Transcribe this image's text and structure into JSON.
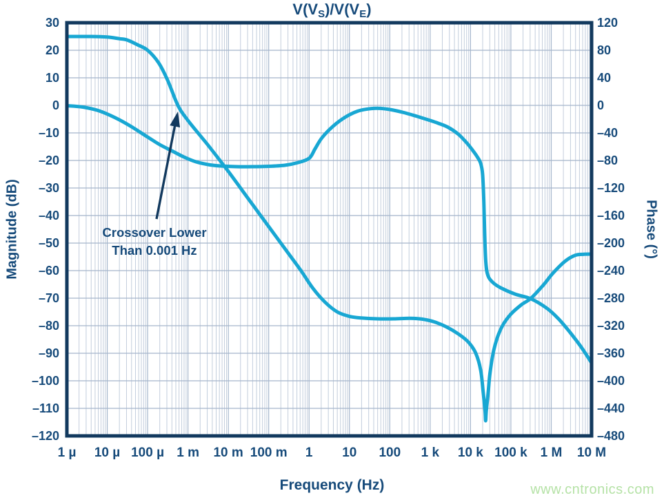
{
  "title_segments": [
    {
      "text": "V(V"
    },
    {
      "text": "S",
      "sub": true
    },
    {
      "text": ")/V(V"
    },
    {
      "text": "E",
      "sub": true
    },
    {
      "text": ")"
    }
  ],
  "watermark": "www.cntronics.com",
  "annotation": {
    "line1": "Crossover Lower",
    "line2": "Than 0.001 Hz"
  },
  "colors": {
    "curve": "#18a7d3",
    "frame": "#12395e",
    "text": "#164a7a",
    "grid_minor": "#c2cddc",
    "grid_major": "#a4b5cb",
    "arrow": "#12395e",
    "watermark": "#b5e2a6"
  },
  "axes": {
    "x": {
      "label": "Frequency (Hz)",
      "scale": "log",
      "tick_labels": [
        "1 µ",
        "10 µ",
        "100 µ",
        "1 m",
        "10 m",
        "100 m",
        "1",
        "10",
        "100",
        "1 k",
        "10 k",
        "100 k",
        "1 M",
        "10 M"
      ],
      "tick_log10_values": [
        -6,
        -5,
        -4,
        -3,
        -2,
        -1,
        0,
        1,
        2,
        3,
        4,
        5,
        6,
        7
      ]
    },
    "left": {
      "label": "Magnitude (dB)",
      "range": [
        30,
        -120
      ],
      "tick_labels": [
        "30",
        "20",
        "10",
        "0",
        "–10",
        "–20",
        "–30",
        "–40",
        "–50",
        "–60",
        "–70",
        "–80",
        "–90",
        "–100",
        "–110",
        "–120"
      ]
    },
    "right": {
      "label": "Phase (°)",
      "range": [
        120,
        -480
      ],
      "tick_labels": [
        "120",
        "80",
        "40",
        "0",
        "–40",
        "–80",
        "–120",
        "–160",
        "–200",
        "–240",
        "–280",
        "–320",
        "–360",
        "–400",
        "–440",
        "–480"
      ]
    }
  },
  "chart_data": {
    "type": "line",
    "title": "V(V_S)/V(V_E)",
    "xlabel": "Frequency (Hz)",
    "x_scale": "log",
    "x_range_log10": [
      -6,
      7
    ],
    "left_ylim": [
      30,
      -120
    ],
    "right_ylim": [
      120,
      -480
    ],
    "grid": true,
    "legend": "none",
    "annotation_text": "Crossover Lower Than 0.001 Hz",
    "annotation_points_at_log10_hz": -3.25,
    "series": [
      {
        "name": "magnitude",
        "axis": "left",
        "unit": "dB",
        "points": [
          [
            -6.0,
            25
          ],
          [
            -5.4,
            25
          ],
          [
            -5.0,
            24.8
          ],
          [
            -4.7,
            24.2
          ],
          [
            -4.5,
            23.7
          ],
          [
            -4.25,
            22
          ],
          [
            -4.0,
            20
          ],
          [
            -3.73,
            15.5
          ],
          [
            -3.5,
            9
          ],
          [
            -3.25,
            0
          ],
          [
            -3.0,
            -5.5
          ],
          [
            -2.5,
            -14.5
          ],
          [
            -2.0,
            -24
          ],
          [
            -1.5,
            -34
          ],
          [
            -1.0,
            -44
          ],
          [
            -0.5,
            -54
          ],
          [
            -0.2,
            -60
          ],
          [
            0.1,
            -66.5
          ],
          [
            0.4,
            -71.5
          ],
          [
            0.7,
            -75
          ],
          [
            1.0,
            -76.6
          ],
          [
            1.3,
            -77.2
          ],
          [
            1.7,
            -77.5
          ],
          [
            2.1,
            -77.5
          ],
          [
            2.5,
            -77.3
          ],
          [
            2.8,
            -77.6
          ],
          [
            3.1,
            -78.6
          ],
          [
            3.4,
            -80.4
          ],
          [
            3.7,
            -83
          ],
          [
            3.95,
            -86
          ],
          [
            4.13,
            -90
          ],
          [
            4.25,
            -96
          ],
          [
            4.31,
            -103.5
          ],
          [
            4.36,
            -111
          ],
          [
            4.375,
            -114.5
          ],
          [
            4.39,
            -111
          ],
          [
            4.44,
            -104
          ],
          [
            4.48,
            -97.5
          ],
          [
            4.56,
            -90
          ],
          [
            4.66,
            -84.5
          ],
          [
            4.8,
            -79.8
          ],
          [
            5.0,
            -75.8
          ],
          [
            5.25,
            -72.5
          ],
          [
            5.5,
            -70
          ],
          [
            5.8,
            -65.3
          ],
          [
            6.05,
            -60.8
          ],
          [
            6.35,
            -56.5
          ],
          [
            6.6,
            -54.4
          ],
          [
            6.8,
            -54.05
          ],
          [
            7.0,
            -54
          ]
        ]
      },
      {
        "name": "phase",
        "axis": "right",
        "unit": "deg",
        "points": [
          [
            -6.0,
            -0.5
          ],
          [
            -5.6,
            -2.5
          ],
          [
            -5.2,
            -8
          ],
          [
            -4.8,
            -18
          ],
          [
            -4.4,
            -31
          ],
          [
            -4.0,
            -46
          ],
          [
            -3.7,
            -57
          ],
          [
            -3.4,
            -66
          ],
          [
            -3.1,
            -75
          ],
          [
            -2.8,
            -82
          ],
          [
            -2.5,
            -86
          ],
          [
            -2.2,
            -88
          ],
          [
            -1.8,
            -89
          ],
          [
            -1.4,
            -89
          ],
          [
            -1.0,
            -88.5
          ],
          [
            -0.6,
            -87
          ],
          [
            -0.3,
            -83.5
          ],
          [
            0.0,
            -77
          ],
          [
            0.15,
            -63
          ],
          [
            0.32,
            -47
          ],
          [
            0.6,
            -30
          ],
          [
            0.9,
            -17
          ],
          [
            1.2,
            -8.5
          ],
          [
            1.45,
            -5.3
          ],
          [
            1.65,
            -4.3
          ],
          [
            1.85,
            -4.8
          ],
          [
            2.05,
            -6.5
          ],
          [
            2.35,
            -10.5
          ],
          [
            2.65,
            -15.5
          ],
          [
            2.95,
            -21
          ],
          [
            3.2,
            -26
          ],
          [
            3.45,
            -32
          ],
          [
            3.7,
            -42
          ],
          [
            3.9,
            -54
          ],
          [
            4.05,
            -65
          ],
          [
            4.17,
            -75
          ],
          [
            4.25,
            -84
          ],
          [
            4.3,
            -100
          ],
          [
            4.33,
            -140
          ],
          [
            4.35,
            -185
          ],
          [
            4.38,
            -228
          ],
          [
            4.43,
            -247
          ],
          [
            4.55,
            -257
          ],
          [
            4.75,
            -265
          ],
          [
            5.1,
            -274
          ],
          [
            5.5,
            -281
          ],
          [
            5.9,
            -295
          ],
          [
            6.18,
            -310
          ],
          [
            6.47,
            -330
          ],
          [
            6.73,
            -350
          ],
          [
            7.0,
            -374
          ]
        ]
      }
    ]
  }
}
